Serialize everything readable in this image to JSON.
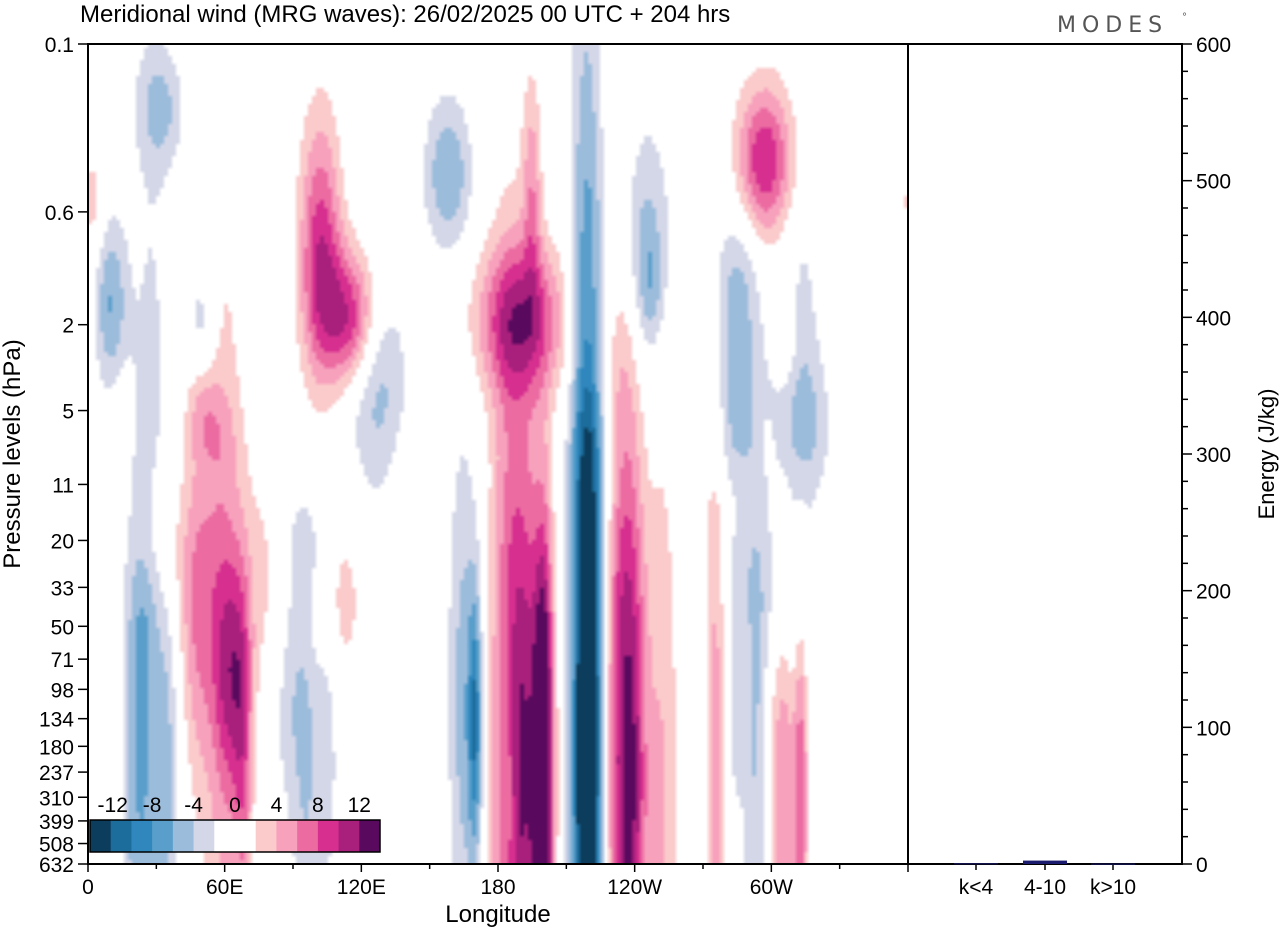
{
  "title": "Meridional wind (MRG waves):  26/02/2025  00 UTC  + 204 hrs",
  "brand": "MODES",
  "brand_mark": "°",
  "chart_data": [
    {
      "type": "heatmap",
      "title": "Meridional wind (MRG waves):  26/02/2025  00 UTC  + 204 hrs",
      "xlabel": "Longitude",
      "ylabel": "Pressure levels (hPa)",
      "x_ticks": [
        "0",
        "60E",
        "120E",
        "180",
        "120W",
        "60W"
      ],
      "y_ticks": [
        "0.1",
        "0.6",
        "2",
        "5",
        "11",
        "20",
        "33",
        "50",
        "71",
        "98",
        "134",
        "180",
        "237",
        "310",
        "399",
        "508",
        "632"
      ],
      "colorbar_labels": [
        "-12",
        "-8",
        "-4",
        "0",
        "4",
        "8",
        "12"
      ],
      "colorbar_colors": [
        "#0d3d5c",
        "#1c6c9c",
        "#2f87bd",
        "#5a9fcb",
        "#9cbcdc",
        "#d4d7e8",
        "#ffffff",
        "#ffffff",
        "#fbcaca",
        "#f7a1bd",
        "#ec6ca2",
        "#d62f8f",
        "#a81f7c",
        "#5a0a5e"
      ],
      "blobs": [
        {
          "lon": 10,
          "lev": 1.6,
          "rl": 7,
          "rv": 0.9,
          "v": -6
        },
        {
          "lon": 32,
          "lev": 0.2,
          "rl": 10,
          "rv": 0.6,
          "v": -4
        },
        {
          "lon": 2,
          "lev": 0.55,
          "rl": 5,
          "rv": 0.6,
          "v": 3
        },
        {
          "lon": 50,
          "lev": 2.0,
          "rl": 6,
          "rv": 0.7,
          "v": -3
        },
        {
          "lon": 102,
          "lev": 0.9,
          "rl": 9,
          "rv": 1.4,
          "v": 9
        },
        {
          "lon": 115,
          "lev": 1.6,
          "rl": 14,
          "rv": 0.7,
          "v": 7
        },
        {
          "lon": 115,
          "lev": 2.3,
          "rl": 10,
          "rv": 0.6,
          "v": 4
        },
        {
          "lon": 127,
          "lev": 3.5,
          "rl": 13,
          "rv": 1.3,
          "v": -5
        },
        {
          "lon": 158,
          "lev": 0.4,
          "rl": 10,
          "rv": 0.8,
          "v": -6
        },
        {
          "lon": 195,
          "lev": 0.5,
          "rl": 4,
          "rv": 1.2,
          "v": 5
        },
        {
          "lon": 190,
          "lev": 1.9,
          "rl": 20,
          "rv": 0.8,
          "v": 9
        },
        {
          "lon": 243,
          "lev": 0.8,
          "rl": 13,
          "rv": 1.3,
          "v": -5
        },
        {
          "lon": 247,
          "lev": 1.3,
          "rl": 5,
          "rv": 0.6,
          "v": -3
        },
        {
          "lon": 285,
          "lev": 1.5,
          "rl": 10,
          "rv": 1.0,
          "v": -5
        },
        {
          "lon": 297,
          "lev": 0.35,
          "rl": 12,
          "rv": 0.8,
          "v": 10
        },
        {
          "lon": 307,
          "lev": 2.1,
          "rl": 5,
          "rv": 0.6,
          "v": 3
        },
        {
          "lon": 312,
          "lev": 1.8,
          "rl": 9,
          "rv": 1.2,
          "v": -3
        },
        {
          "lon": 317,
          "lev": 6.0,
          "rl": 10,
          "rv": 0.8,
          "v": -3
        },
        {
          "lon": 50,
          "lev": 4.6,
          "rl": 7,
          "rv": 0.5,
          "v": 3
        },
        {
          "lon": 55,
          "lev": 6.5,
          "rl": 10,
          "rv": 0.5,
          "v": 2
        },
        {
          "lon": 15,
          "lev": 5.2,
          "rl": 4,
          "rv": 0.5,
          "v": 2
        },
        {
          "lon": 283,
          "lev": 5.8,
          "rl": 8,
          "rv": 0.8,
          "v": -3
        },
        {
          "lon": 300,
          "lev": 6.3,
          "rl": 16,
          "rv": 0.8,
          "v": -3
        },
        {
          "lon": 225,
          "lev": 9.5,
          "rl": 14,
          "rv": 0.8,
          "v": -2
        },
        {
          "lon": 297,
          "lev": 7.0,
          "rl": 5,
          "rv": 0.5,
          "v": 2
        },
        {
          "lon": 143,
          "lev": 11.0,
          "rl": 8,
          "rv": 0.5,
          "v": 2
        },
        {
          "lon": 30,
          "lev": 21.0,
          "rl": 10,
          "rv": 0.9,
          "v": 2
        },
        {
          "lon": 50,
          "lev": 24.0,
          "rl": 15,
          "rv": 1.3,
          "v": 3
        },
        {
          "lon": 85,
          "lev": 30.0,
          "rl": 15,
          "rv": 1.3,
          "v": 4
        },
        {
          "lon": 110,
          "lev": 36.0,
          "rl": 12,
          "rv": 1.0,
          "v": 3
        },
        {
          "lon": 95,
          "lev": 21.0,
          "rl": 12,
          "rv": 0.7,
          "v": -3
        },
        {
          "lon": 25,
          "lev": 46.0,
          "rl": 7,
          "rv": 0.8,
          "v": -2
        },
        {
          "lon": 305,
          "lev": 36.0,
          "rl": 12,
          "rv": 1.1,
          "v": -4
        },
        {
          "lon": 285,
          "lev": 29.0,
          "rl": 7,
          "rv": 0.6,
          "v": -2
        },
        {
          "lon": 327,
          "lev": 28.0,
          "rl": 6,
          "rv": 0.6,
          "v": 2
        },
        {
          "lon": 48,
          "lev": 62.0,
          "rl": 7,
          "rv": 1.7,
          "v": 4
        },
        {
          "lon": 63,
          "lev": 85.0,
          "rl": 8,
          "rv": 1.2,
          "v": 7
        },
        {
          "lon": 90,
          "lev": 65.0,
          "rl": 10,
          "rv": 1.6,
          "v": -5
        },
        {
          "lon": 60,
          "lev": 200.0,
          "rl": 9,
          "rv": 6.0,
          "v": 4
        },
        {
          "lon": 68,
          "lev": 230.0,
          "rl": 4,
          "rv": 1.8,
          "v": 5
        },
        {
          "lon": 28,
          "lev": 180.0,
          "rl": 10,
          "rv": 8.0,
          "v": -3
        },
        {
          "lon": 22,
          "lev": 250.0,
          "rl": 7,
          "rv": 3.0,
          "v": -4
        },
        {
          "lon": 35,
          "lev": 230.0,
          "rl": 5,
          "rv": 2.0,
          "v": -3
        },
        {
          "lon": 2,
          "lev": 420.0,
          "rl": 4,
          "rv": 2.0,
          "v": 2
        },
        {
          "lon": 105,
          "lev": 150.0,
          "rl": 5,
          "rv": 2.0,
          "v": -3
        },
        {
          "lon": 96,
          "lev": 480.0,
          "rl": 6,
          "rv": 2.5,
          "v": -3
        },
        {
          "lon": 165,
          "lev": 112.0,
          "rl": 7,
          "rv": 2.8,
          "v": -5
        },
        {
          "lon": 170,
          "lev": 140.0,
          "rl": 3,
          "rv": 1.4,
          "v": -8
        },
        {
          "lon": 185,
          "lev": 160.0,
          "rl": 9,
          "rv": 5.0,
          "v": 6
        },
        {
          "lon": 193,
          "lev": 225.0,
          "rl": 10,
          "rv": 3.5,
          "v": 9
        },
        {
          "lon": 200,
          "lev": 250.0,
          "rl": 4,
          "rv": 2.5,
          "v": 14
        },
        {
          "lon": 219,
          "lev": 270.0,
          "rl": 7,
          "rv": 7.0,
          "v": -14
        },
        {
          "lon": 220,
          "lev": 140.0,
          "rl": 5,
          "rv": 2.2,
          "v": -6
        },
        {
          "lon": 235,
          "lev": 190.0,
          "rl": 8,
          "rv": 5.0,
          "v": 10
        },
        {
          "lon": 240,
          "lev": 260.0,
          "rl": 6,
          "rv": 2.8,
          "v": 5
        },
        {
          "lon": 185,
          "lev": 245.0,
          "rl": 3,
          "rv": 1.5,
          "v": -3
        },
        {
          "lon": 143,
          "lev": 500.0,
          "rl": 10,
          "rv": 3.0,
          "v": 2
        },
        {
          "lon": 275,
          "lev": 230.0,
          "rl": 6,
          "rv": 3.5,
          "v": 6
        },
        {
          "lon": 270,
          "lev": 320.0,
          "rl": 5,
          "rv": 2.5,
          "v": -3
        },
        {
          "lon": 293,
          "lev": 230.0,
          "rl": 5,
          "rv": 3.0,
          "v": -4
        },
        {
          "lon": 305,
          "lev": 280.0,
          "rl": 6,
          "rv": 3.0,
          "v": 6
        },
        {
          "lon": 313,
          "lev": 300.0,
          "rl": 3,
          "rv": 2.0,
          "v": 7
        },
        {
          "lon": 252,
          "lev": 330.0,
          "rl": 7,
          "rv": 4.0,
          "v": 4
        },
        {
          "lon": 283,
          "lev": 145.0,
          "rl": 5,
          "rv": 1.6,
          "v": -3
        }
      ]
    },
    {
      "type": "bar",
      "title": "",
      "categories": [
        "k<4",
        "4-10",
        "k>10"
      ],
      "values": [
        0.5,
        2.5,
        0.3
      ],
      "ylabel": "Energy (J/kg)",
      "ylim": [
        0,
        600
      ],
      "y_ticks": [
        "0",
        "100",
        "200",
        "300",
        "400",
        "500",
        "600"
      ],
      "bar_color": "#1a1a6e"
    }
  ]
}
